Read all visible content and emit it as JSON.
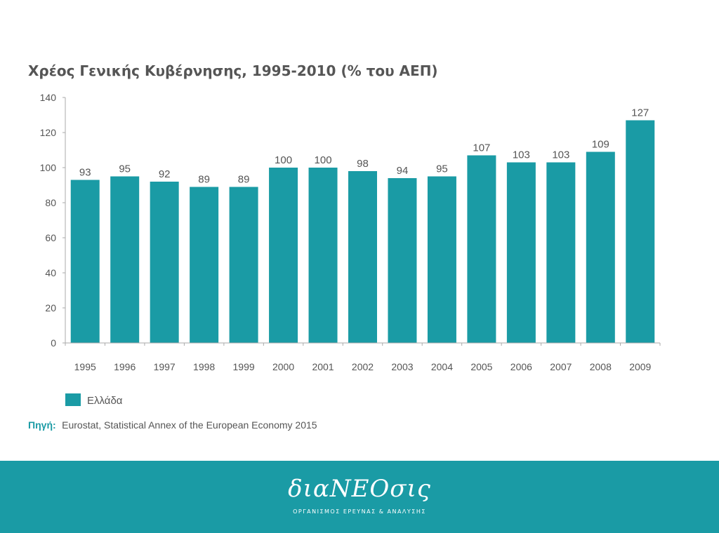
{
  "chart_data": {
    "type": "bar",
    "title": "Χρέος Γενικής Κυβέρνησης, 1995-2010 (% του ΑΕΠ)",
    "categories": [
      "1995",
      "1996",
      "1997",
      "1998",
      "1999",
      "2000",
      "2001",
      "2002",
      "2003",
      "2004",
      "2005",
      "2006",
      "2007",
      "2008",
      "2009"
    ],
    "series": [
      {
        "name": "Ελλάδα",
        "values": [
          93,
          95,
          92,
          89,
          89,
          100,
          100,
          98,
          94,
          95,
          107,
          103,
          103,
          109,
          127
        ],
        "color": "#1a9ba5"
      }
    ],
    "data_labels": [
      "93",
      "95",
      "92",
      "89",
      "89",
      "100",
      "100",
      "98",
      "94",
      "95",
      "107",
      "103",
      "103",
      "109",
      "127"
    ],
    "ylim": [
      0,
      140
    ],
    "yticks": [
      0,
      20,
      40,
      60,
      80,
      100,
      120,
      140
    ],
    "grid": false,
    "legend_position": "bottom-left"
  },
  "source": {
    "label": "Πηγή:",
    "text": "Eurostat, Statistical Annex of the European Economy 2015"
  },
  "footer": {
    "brand": "διαΝΕΟσις",
    "tagline": "ΟΡΓΑΝΙΣΜΟΣ ΕΡΕΥΝΑΣ & ΑΝΑΛΥΣΗΣ",
    "color": "#1a9ba5"
  }
}
